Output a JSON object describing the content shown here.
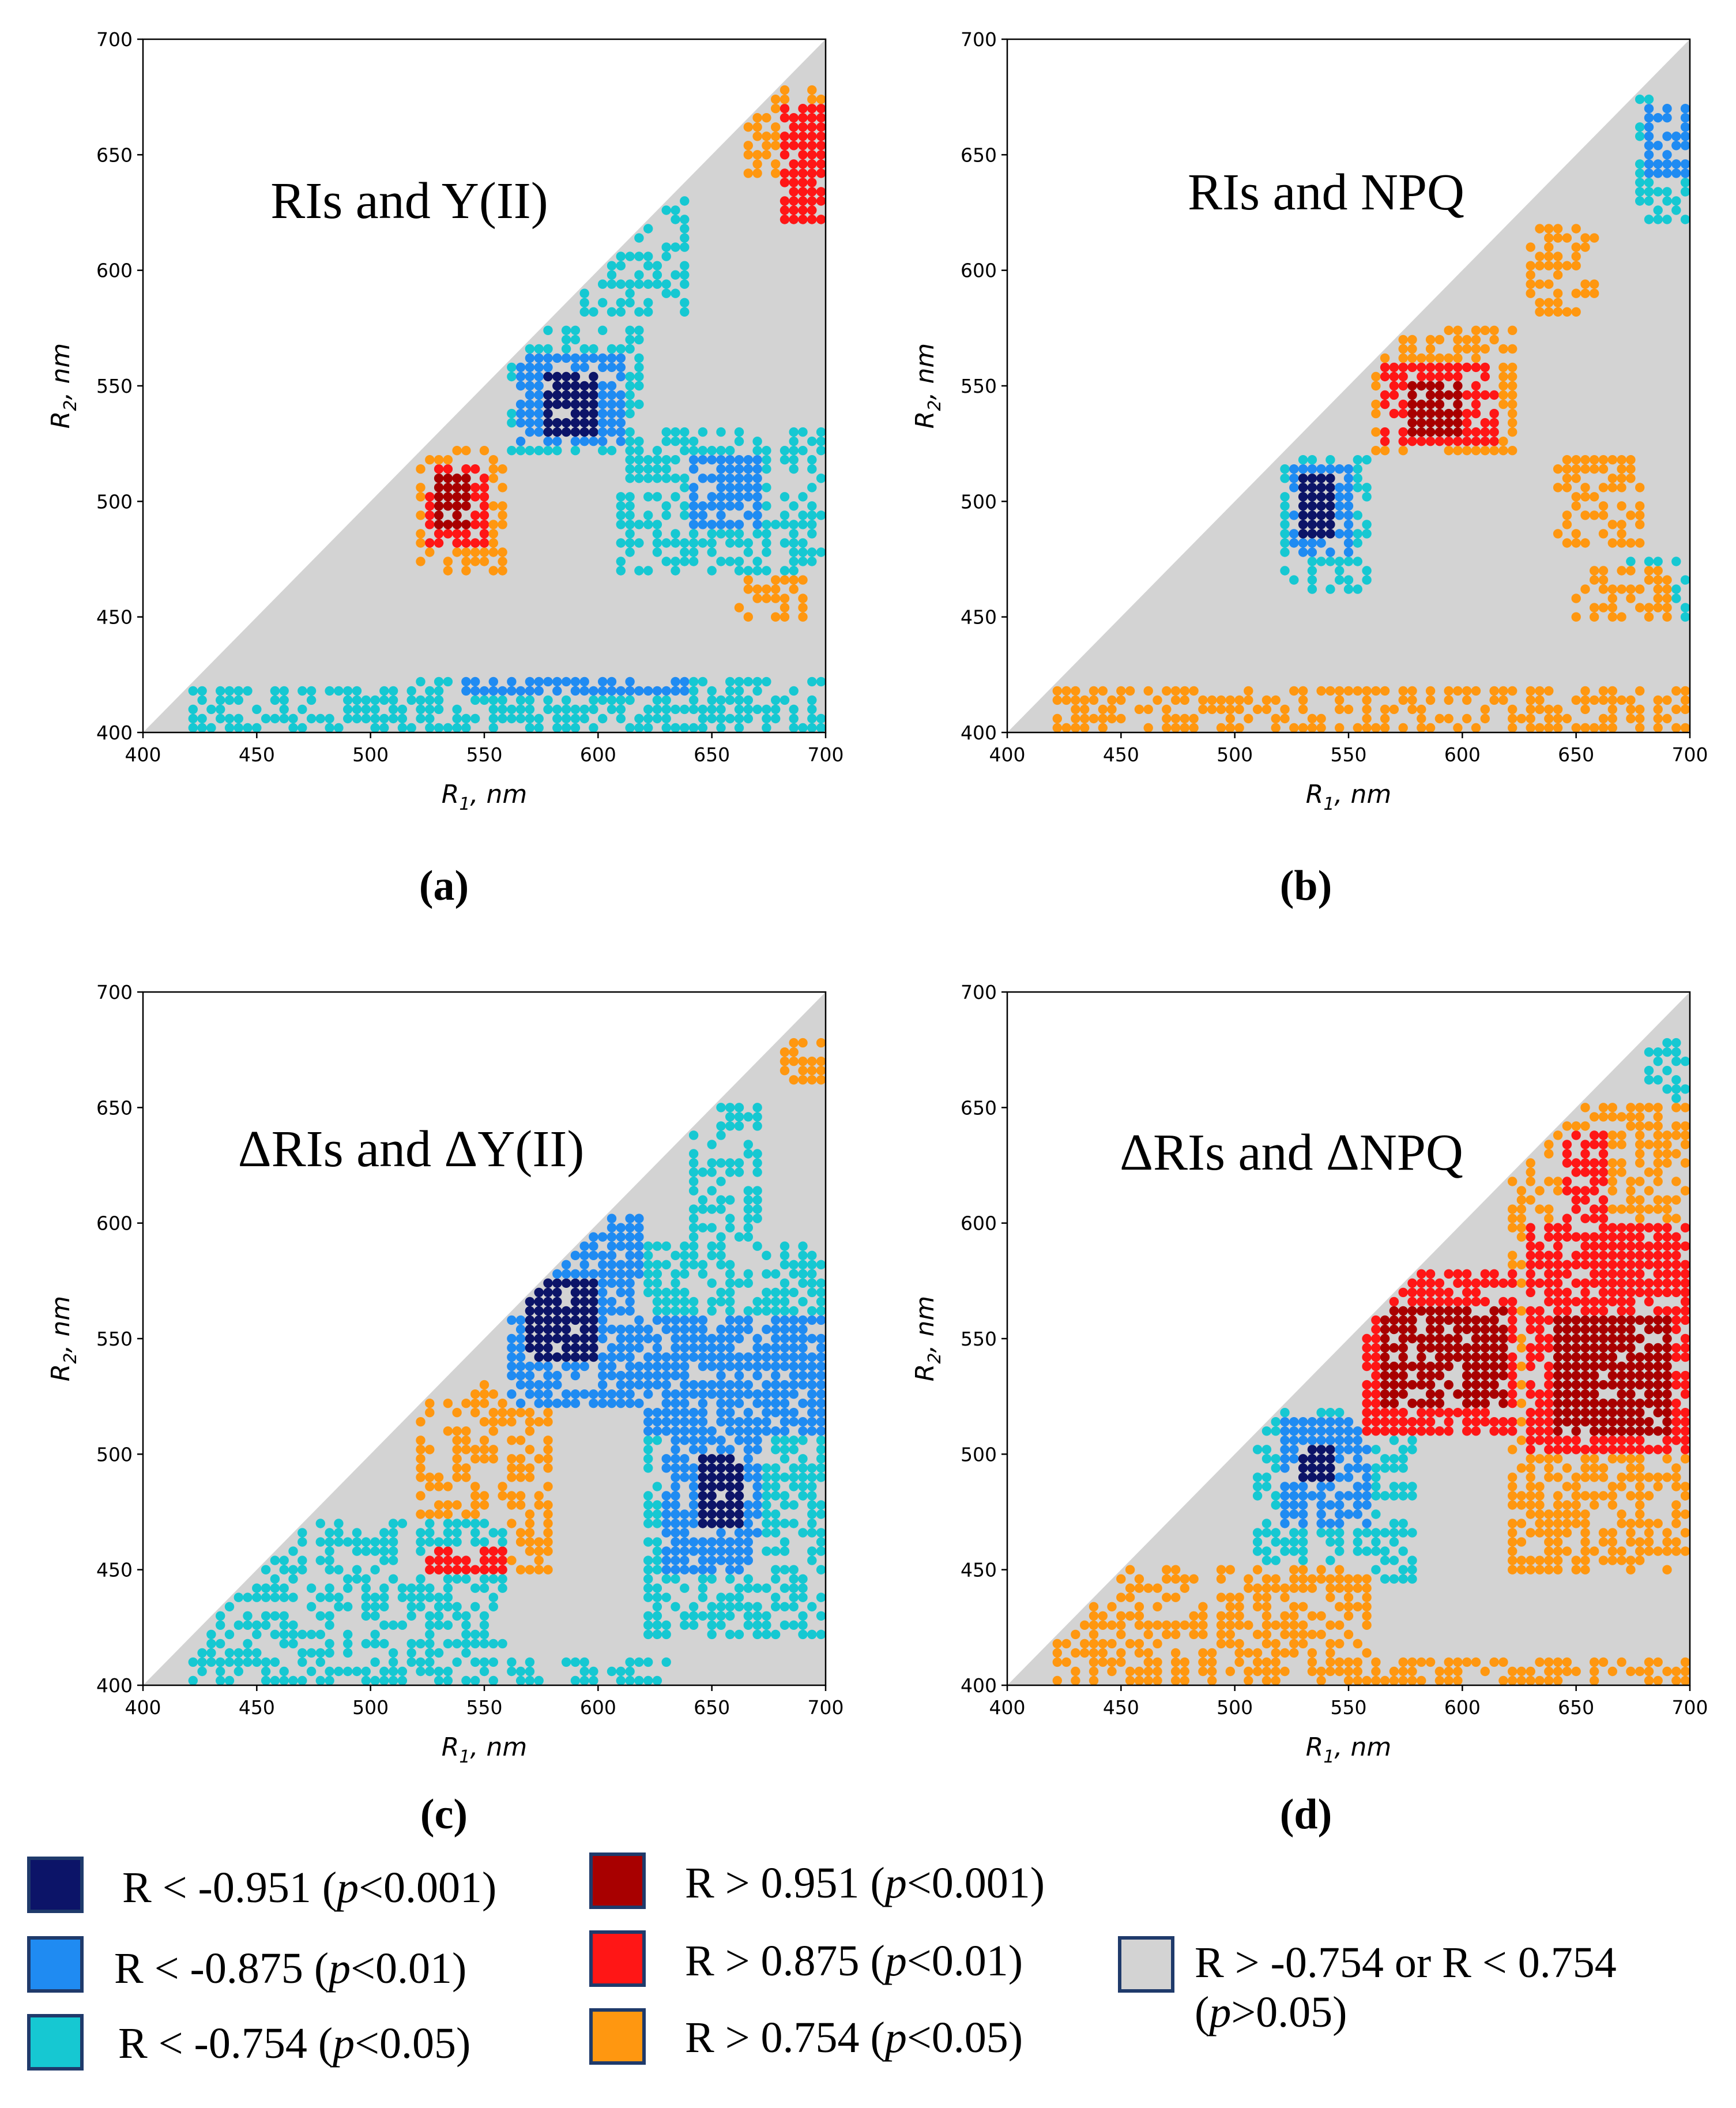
{
  "colors": {
    "very_strong_negative": "#0c1468",
    "strong_negative": "#1f8bf2",
    "negative": "#16c8d2",
    "very_strong_positive": "#a80000",
    "strong_positive": "#ff1616",
    "positive": "#ff9710",
    "not_significant": "#d3d3d3"
  },
  "chart_data": [
    {
      "type": "heatmap",
      "panel_label": "(a)",
      "title": "RIs and Y(II)",
      "xlabel": "R1, nm",
      "ylabel": "R2, nm",
      "xlim": [
        400,
        700
      ],
      "ylim": [
        400,
        700
      ],
      "xticks": [
        "400",
        "450",
        "500",
        "550",
        "600",
        "650",
        "700"
      ],
      "yticks": [
        "400",
        "450",
        "500",
        "550",
        "600",
        "650",
        "700"
      ],
      "valid_region": "R2 < R1",
      "regions": [
        {
          "class": "negative",
          "x": [
            560,
            620
          ],
          "y": [
            520,
            575
          ]
        },
        {
          "class": "strong_negative",
          "x": [
            565,
            610
          ],
          "y": [
            525,
            565
          ]
        },
        {
          "class": "very_strong_negative",
          "x": [
            575,
            600
          ],
          "y": [
            530,
            555
          ]
        },
        {
          "class": "negative",
          "x": [
            590,
            640
          ],
          "y": [
            580,
            630
          ]
        },
        {
          "class": "negative",
          "x": [
            610,
            700
          ],
          "y": [
            470,
            530
          ]
        },
        {
          "class": "strong_negative",
          "x": [
            640,
            670
          ],
          "y": [
            490,
            520
          ]
        },
        {
          "class": "negative",
          "x": [
            520,
            700
          ],
          "y": [
            400,
            425
          ]
        },
        {
          "class": "strong_negative",
          "x": [
            540,
            640
          ],
          "y": [
            415,
            425
          ]
        },
        {
          "class": "negative",
          "x": [
            420,
            520
          ],
          "y": [
            400,
            420
          ]
        },
        {
          "class": "positive",
          "x": [
            520,
            560
          ],
          "y": [
            470,
            525
          ]
        },
        {
          "class": "strong_positive",
          "x": [
            525,
            550
          ],
          "y": [
            480,
            515
          ]
        },
        {
          "class": "very_strong_positive",
          "x": [
            530,
            545
          ],
          "y": [
            490,
            510
          ]
        },
        {
          "class": "positive",
          "x": [
            665,
            700
          ],
          "y": [
            640,
            680
          ]
        },
        {
          "class": "strong_positive",
          "x": [
            680,
            700
          ],
          "y": [
            620,
            670
          ]
        },
        {
          "class": "positive",
          "x": [
            660,
            690
          ],
          "y": [
            450,
            470
          ]
        }
      ]
    },
    {
      "type": "heatmap",
      "panel_label": "(b)",
      "title": "RIs and NPQ",
      "xlabel": "R1, nm",
      "ylabel": "R2, nm",
      "xlim": [
        400,
        700
      ],
      "ylim": [
        400,
        700
      ],
      "xticks": [
        "400",
        "450",
        "500",
        "550",
        "600",
        "650",
        "700"
      ],
      "yticks": [
        "400",
        "450",
        "500",
        "550",
        "600",
        "650",
        "700"
      ],
      "valid_region": "R2 < R1",
      "regions": [
        {
          "class": "positive",
          "x": [
            560,
            625
          ],
          "y": [
            520,
            575
          ]
        },
        {
          "class": "strong_positive",
          "x": [
            565,
            615
          ],
          "y": [
            525,
            560
          ]
        },
        {
          "class": "very_strong_positive",
          "x": [
            575,
            600
          ],
          "y": [
            530,
            550
          ]
        },
        {
          "class": "positive",
          "x": [
            630,
            660
          ],
          "y": [
            580,
            620
          ]
        },
        {
          "class": "positive",
          "x": [
            640,
            680
          ],
          "y": [
            480,
            520
          ]
        },
        {
          "class": "positive",
          "x": [
            420,
            700
          ],
          "y": [
            400,
            420
          ]
        },
        {
          "class": "positive",
          "x": [
            650,
            690
          ],
          "y": [
            450,
            470
          ]
        },
        {
          "class": "negative",
          "x": [
            520,
            560
          ],
          "y": [
            460,
            520
          ]
        },
        {
          "class": "strong_negative",
          "x": [
            525,
            550
          ],
          "y": [
            475,
            515
          ]
        },
        {
          "class": "very_strong_negative",
          "x": [
            530,
            545
          ],
          "y": [
            485,
            510
          ]
        },
        {
          "class": "negative",
          "x": [
            675,
            700
          ],
          "y": [
            620,
            675
          ]
        },
        {
          "class": "strong_negative",
          "x": [
            680,
            700
          ],
          "y": [
            640,
            670
          ]
        },
        {
          "class": "negative",
          "x": [
            670,
            700
          ],
          "y": [
            450,
            475
          ]
        }
      ]
    },
    {
      "type": "heatmap",
      "panel_label": "(c)",
      "title": "ΔRIs and ΔY(II)",
      "xlabel": "R1, nm",
      "ylabel": "R2, nm",
      "xlim": [
        400,
        700
      ],
      "ylim": [
        400,
        700
      ],
      "xticks": [
        "400",
        "450",
        "500",
        "550",
        "600",
        "650",
        "700"
      ],
      "yticks": [
        "400",
        "450",
        "500",
        "550",
        "600",
        "650",
        "700"
      ],
      "valid_region": "R2 < R1",
      "regions": [
        {
          "class": "negative",
          "x": [
            620,
            700
          ],
          "y": [
            420,
            590
          ]
        },
        {
          "class": "negative",
          "x": [
            640,
            670
          ],
          "y": [
            590,
            650
          ]
        },
        {
          "class": "strong_negative",
          "x": [
            560,
            620
          ],
          "y": [
            520,
            605
          ]
        },
        {
          "class": "strong_negative",
          "x": [
            620,
            700
          ],
          "y": [
            510,
            560
          ]
        },
        {
          "class": "strong_negative",
          "x": [
            630,
            670
          ],
          "y": [
            450,
            510
          ]
        },
        {
          "class": "very_strong_negative",
          "x": [
            570,
            600
          ],
          "y": [
            540,
            575
          ]
        },
        {
          "class": "very_strong_negative",
          "x": [
            645,
            665
          ],
          "y": [
            470,
            500
          ]
        },
        {
          "class": "negative",
          "x": [
            420,
            560
          ],
          "y": [
            400,
            470
          ]
        },
        {
          "class": "negative",
          "x": [
            560,
            630
          ],
          "y": [
            400,
            410
          ]
        },
        {
          "class": "positive",
          "x": [
            520,
            580
          ],
          "y": [
            450,
            530
          ]
        },
        {
          "class": "strong_positive",
          "x": [
            525,
            560
          ],
          "y": [
            450,
            460
          ]
        },
        {
          "class": "positive",
          "x": [
            680,
            700
          ],
          "y": [
            660,
            680
          ]
        }
      ]
    },
    {
      "type": "heatmap",
      "panel_label": "(d)",
      "title": "ΔRIs and ΔNPQ",
      "xlabel": "R1, nm",
      "ylabel": "R2, nm",
      "xlim": [
        400,
        700
      ],
      "ylim": [
        400,
        700
      ],
      "xticks": [
        "400",
        "450",
        "500",
        "550",
        "600",
        "650",
        "700"
      ],
      "yticks": [
        "400",
        "450",
        "500",
        "550",
        "600",
        "650",
        "700"
      ],
      "valid_region": "R2 < R1",
      "regions": [
        {
          "class": "positive",
          "x": [
            620,
            700
          ],
          "y": [
            450,
            650
          ]
        },
        {
          "class": "strong_positive",
          "x": [
            555,
            625
          ],
          "y": [
            510,
            580
          ]
        },
        {
          "class": "very_strong_positive",
          "x": [
            565,
            620
          ],
          "y": [
            520,
            565
          ]
        },
        {
          "class": "strong_positive",
          "x": [
            630,
            700
          ],
          "y": [
            500,
            600
          ]
        },
        {
          "class": "very_strong_positive",
          "x": [
            640,
            690
          ],
          "y": [
            510,
            560
          ]
        },
        {
          "class": "strong_positive",
          "x": [
            645,
            665
          ],
          "y": [
            580,
            640
          ]
        },
        {
          "class": "positive",
          "x": [
            420,
            560
          ],
          "y": [
            400,
            450
          ]
        },
        {
          "class": "positive",
          "x": [
            560,
            700
          ],
          "y": [
            400,
            410
          ]
        },
        {
          "class": "negative",
          "x": [
            510,
            580
          ],
          "y": [
            445,
            520
          ]
        },
        {
          "class": "strong_negative",
          "x": [
            520,
            560
          ],
          "y": [
            470,
            515
          ]
        },
        {
          "class": "very_strong_negative",
          "x": [
            530,
            545
          ],
          "y": [
            490,
            505
          ]
        },
        {
          "class": "negative",
          "x": [
            680,
            700
          ],
          "y": [
            640,
            680
          ]
        }
      ]
    }
  ],
  "legend": [
    {
      "class": "very_strong_negative",
      "pre": "R < -0.951 (",
      "p": "p",
      "post": "<0.001)"
    },
    {
      "class": "strong_negative",
      "pre": "R < -0.875 (",
      "p": "p",
      "post": "<0.01)"
    },
    {
      "class": "negative",
      "pre": "R < -0.754 (",
      "p": "p",
      "post": "<0.05)"
    },
    {
      "class": "very_strong_positive",
      "pre": "R > 0.951 (",
      "p": "p",
      "post": "<0.001)"
    },
    {
      "class": "strong_positive",
      "pre": "R > 0.875 (",
      "p": "p",
      "post": "<0.01)"
    },
    {
      "class": "positive",
      "pre": "R > 0.754 (",
      "p": "p",
      "post": "<0.05)"
    },
    {
      "class": "not_significant",
      "line1": "R > -0.754 or R < 0.754",
      "pre2": "(",
      "p": "p",
      "post2": ">0.05)"
    }
  ]
}
